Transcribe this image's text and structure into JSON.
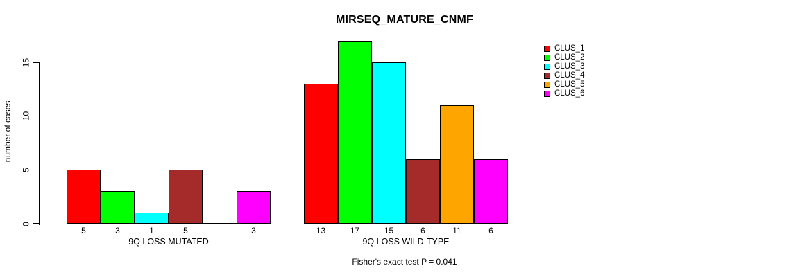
{
  "chart_data": {
    "type": "bar",
    "title": "MIRSEQ_MATURE_CNMF",
    "categories": [
      "9Q LOSS MUTATED",
      "9Q LOSS WILD-TYPE"
    ],
    "series": [
      {
        "name": "CLUS_1",
        "color": "#FF0000",
        "values": [
          5,
          13
        ]
      },
      {
        "name": "CLUS_2",
        "color": "#00FF00",
        "values": [
          3,
          17
        ]
      },
      {
        "name": "CLUS_3",
        "color": "#00FFFF",
        "values": [
          1,
          15
        ]
      },
      {
        "name": "CLUS_4",
        "color": "#A52A2A",
        "values": [
          5,
          6
        ]
      },
      {
        "name": "CLUS_5",
        "color": "#FFA500",
        "values": [
          0,
          11
        ]
      },
      {
        "name": "CLUS_6",
        "color": "#FF00FF",
        "values": [
          3,
          6
        ]
      }
    ],
    "xlabel": "",
    "ylabel": "number of cases",
    "yticks": [
      0,
      5,
      10,
      15
    ],
    "ylim": [
      0,
      17
    ],
    "bar_value_labels_shown": true,
    "zero_value_label_blank": true,
    "annotation": "Fisher's exact test P = 0.041",
    "legend_position": "right",
    "grid": false,
    "background": "#FFFFFF",
    "bar_border_color": "#000000"
  }
}
